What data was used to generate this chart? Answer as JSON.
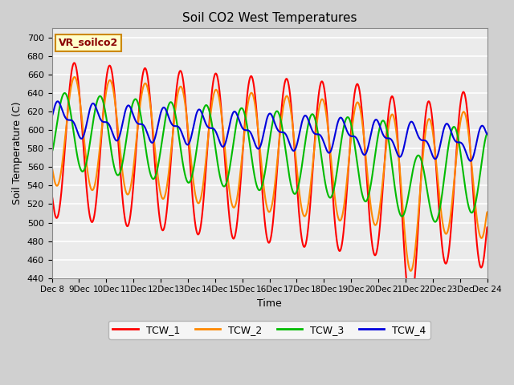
{
  "title": "Soil CO2 West Temperatures",
  "xlabel": "Time",
  "ylabel": "Soil Temperature (C)",
  "annotation": "VR_soilco2",
  "ylim": [
    440,
    710
  ],
  "colors": {
    "TCW_1": "#ff0000",
    "TCW_2": "#ff8800",
    "TCW_3": "#00bb00",
    "TCW_4": "#0000dd"
  },
  "line_width": 1.5,
  "figsize": [
    6.4,
    4.8
  ],
  "dpi": 100
}
